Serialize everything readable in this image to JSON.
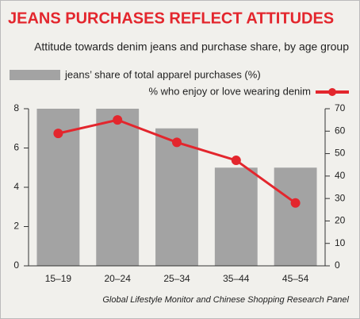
{
  "chart_data": {
    "type": "bar",
    "title": "JEANS PURCHASES REFLECT ATTITUDES",
    "subtitle": "Attitude towards denim jeans and purchase share, by age group",
    "source": "Global Lifestyle Monitor and Chinese Shopping Research Panel",
    "categories": [
      "15–19",
      "20–24",
      "25–34",
      "35–44",
      "45–54"
    ],
    "series": [
      {
        "name": "jeans’ share of total apparel purchases (%)",
        "type": "bar",
        "color": "#a3a3a3",
        "values": [
          8,
          8,
          7,
          5,
          5
        ]
      },
      {
        "name": "% who enjoy or love wearing denim",
        "type": "line",
        "axis": "y2",
        "color": "#e3262d",
        "values": [
          59,
          65,
          55,
          47,
          28
        ]
      }
    ],
    "ylim": [
      0,
      8
    ],
    "yticks": [
      0,
      2,
      4,
      6,
      8
    ],
    "y2lim": [
      0,
      70
    ],
    "y2ticks": [
      0,
      10,
      20,
      30,
      40,
      50,
      60,
      70
    ]
  }
}
